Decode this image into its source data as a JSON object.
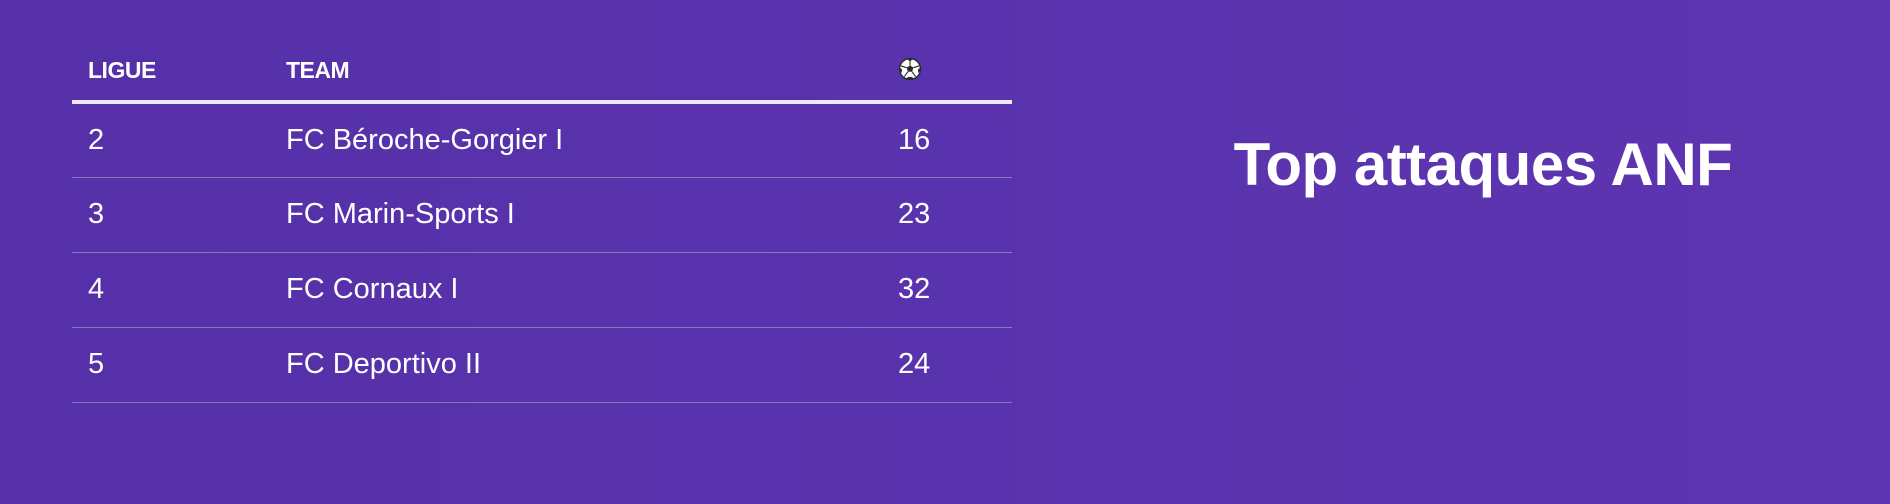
{
  "table": {
    "headers": {
      "ligue": "LIGUE",
      "team": "TEAM",
      "goals_icon": "soccer-ball-icon"
    },
    "rows": [
      {
        "ligue": "2",
        "team": "FC Béroche-Gorgier I",
        "goals": "16"
      },
      {
        "ligue": "3",
        "team": "FC Marin-Sports I",
        "goals": "23"
      },
      {
        "ligue": "4",
        "team": "FC Cornaux I",
        "goals": "32"
      },
      {
        "ligue": "5",
        "team": "FC Deportivo II",
        "goals": "24"
      }
    ]
  },
  "title": "Top attaques ANF",
  "colors": {
    "background": "#5933ad",
    "text": "#ffffff",
    "header_rule": "#ece8f5"
  }
}
